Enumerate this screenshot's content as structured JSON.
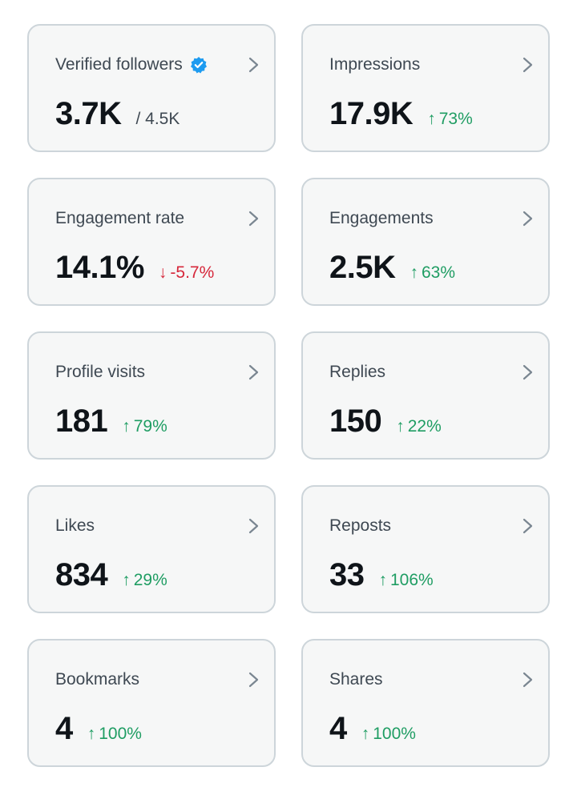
{
  "colors": {
    "card_bg": "#f6f7f7",
    "card_border": "#cdd5da",
    "positive": "#1f9d63",
    "negative": "#d6273a",
    "verified": "#1d9bf0"
  },
  "metrics": [
    {
      "title": "Verified followers",
      "value": "3.7K",
      "total": "/ 4.5K",
      "icon": "verified-badge-icon"
    },
    {
      "title": "Impressions",
      "value": "17.9K",
      "arrow": "↑",
      "change": "73%",
      "direction": "up"
    },
    {
      "title": "Engagement rate",
      "value": "14.1%",
      "arrow": "↓",
      "change": "-5.7%",
      "direction": "down"
    },
    {
      "title": "Engagements",
      "value": "2.5K",
      "arrow": "↑",
      "change": "63%",
      "direction": "up"
    },
    {
      "title": "Profile visits",
      "value": "181",
      "arrow": "↑",
      "change": "79%",
      "direction": "up"
    },
    {
      "title": "Replies",
      "value": "150",
      "arrow": "↑",
      "change": "22%",
      "direction": "up"
    },
    {
      "title": "Likes",
      "value": "834",
      "arrow": "↑",
      "change": "29%",
      "direction": "up"
    },
    {
      "title": "Reposts",
      "value": "33",
      "arrow": "↑",
      "change": "106%",
      "direction": "up"
    },
    {
      "title": "Bookmarks",
      "value": "4",
      "arrow": "↑",
      "change": "100%",
      "direction": "up"
    },
    {
      "title": "Shares",
      "value": "4",
      "arrow": "↑",
      "change": "100%",
      "direction": "up"
    }
  ]
}
